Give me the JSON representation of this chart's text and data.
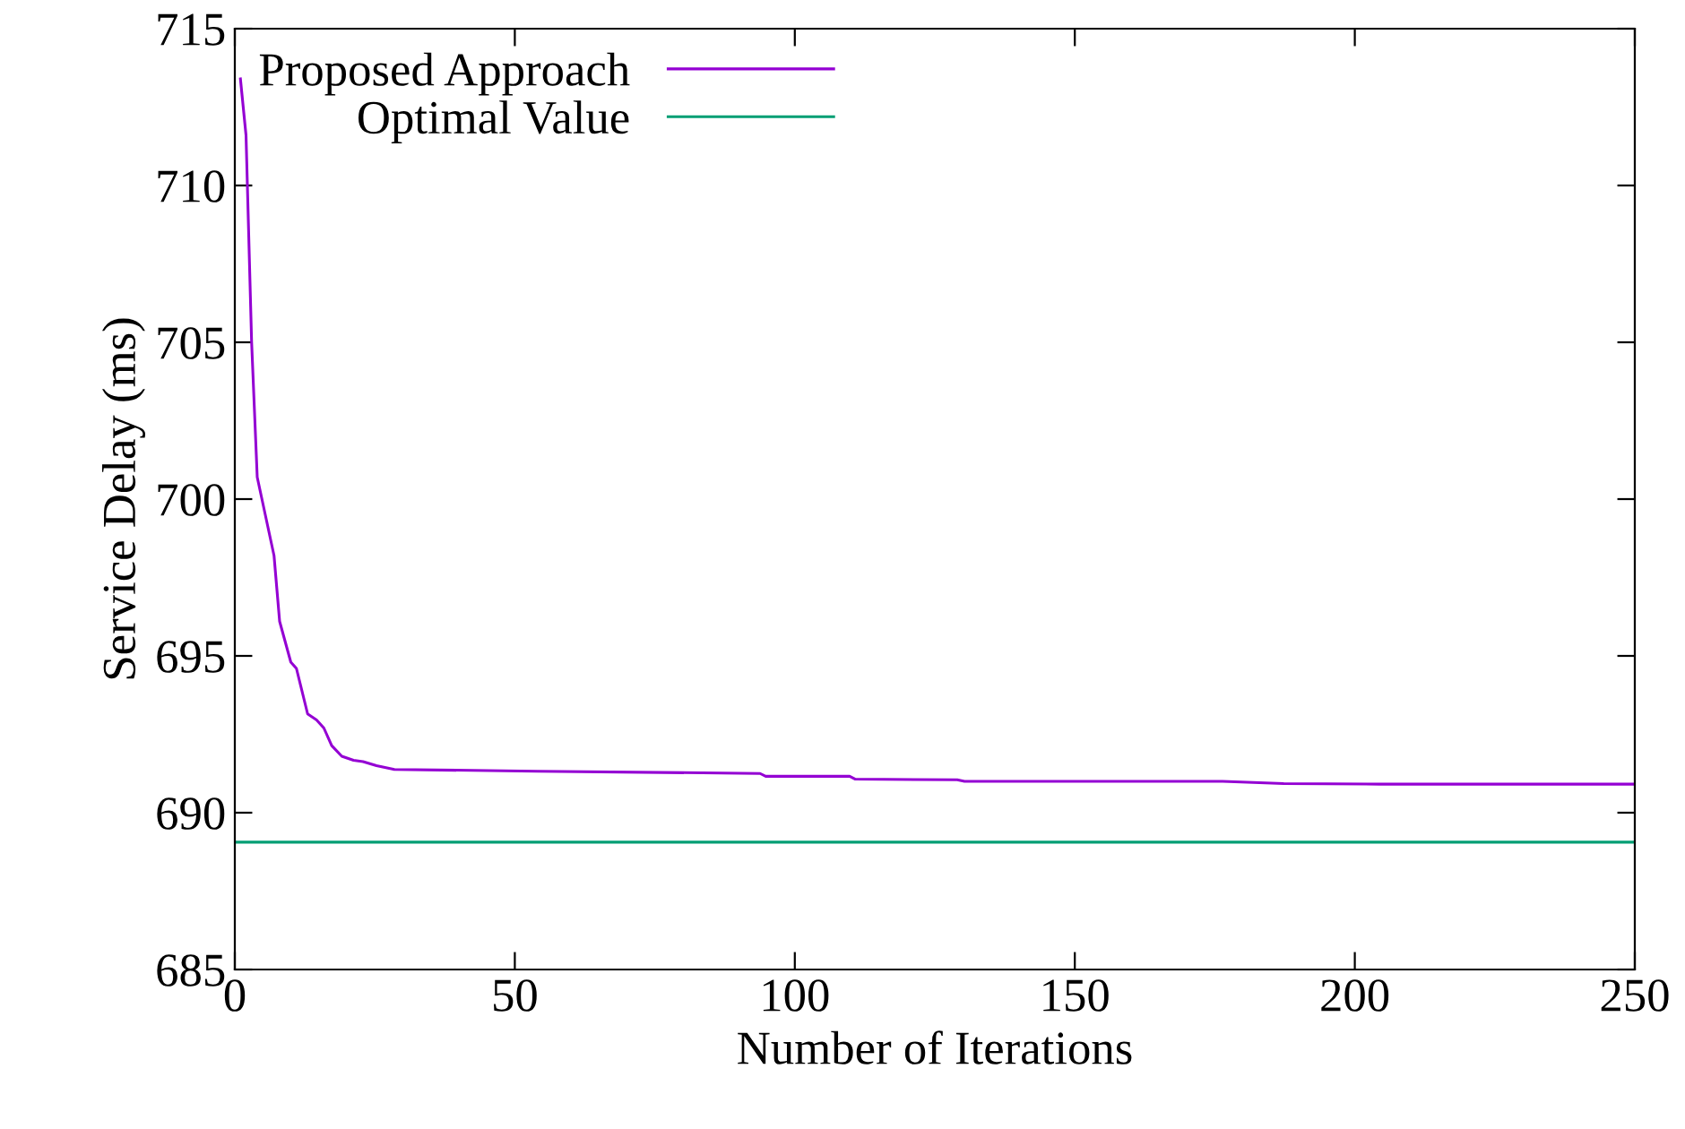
{
  "chart_data": {
    "type": "line",
    "xlabel": "Number of Iterations",
    "ylabel": "Service Delay (ms)",
    "xlim": [
      0,
      250
    ],
    "xticks": [
      0,
      50,
      100,
      150,
      200,
      250
    ],
    "ylim": [
      685,
      715
    ],
    "yticks": [
      685,
      690,
      695,
      700,
      705,
      710,
      715
    ],
    "grid": false,
    "legend": "top left",
    "marker": "none",
    "line_style": "solid",
    "series": [
      {
        "name": "Proposed Approach",
        "color": "#9400d3",
        "x": [
          1,
          2,
          3,
          4,
          7,
          8,
          10,
          11,
          13,
          14.6,
          15.9,
          17.3,
          19.1,
          21.2,
          22.9,
          25.3,
          28.5,
          54,
          83.5,
          93.8,
          94.8,
          109.8,
          110.8,
          129,
          130.3,
          176.4,
          187.3,
          204.5,
          250
        ],
        "values": [
          713.4,
          711.6,
          705,
          700.7,
          698.2,
          696.1,
          694.8,
          694.6,
          693.15,
          692.96,
          692.7,
          692.14,
          691.8,
          691.67,
          691.63,
          691.5,
          691.38,
          691.32,
          691.27,
          691.25,
          691.16,
          691.16,
          691.07,
          691.05,
          691.0,
          691.0,
          690.93,
          690.91,
          690.91
        ]
      },
      {
        "name": "Optimal Value",
        "color": "#009e73",
        "x": [
          0,
          250
        ],
        "values": [
          689.06,
          689.06
        ]
      }
    ]
  }
}
